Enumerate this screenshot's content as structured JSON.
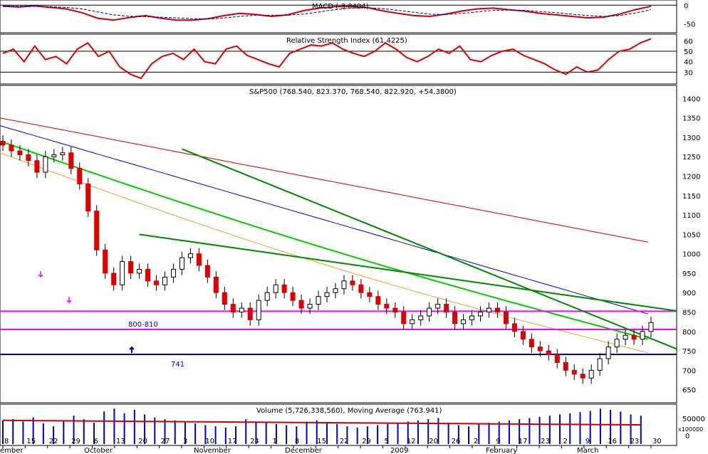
{
  "chart_data": [
    {
      "name": "macd",
      "type": "line",
      "title": "MACD (-3.0404)",
      "ylim": [
        -70,
        10
      ],
      "y_ticks": [
        "0",
        "-50"
      ],
      "series": [
        {
          "name": "MACD",
          "color": "#cc0000",
          "values": [
            -3,
            -5,
            -2,
            -6,
            -10,
            -20,
            -35,
            -40,
            -33,
            -28,
            -35,
            -40,
            -40,
            -36,
            -28,
            -22,
            -25,
            -30,
            -26,
            -15,
            -8,
            -4,
            -3,
            -6,
            -15,
            -22,
            -28,
            -30,
            -24,
            -16,
            -10,
            -8,
            -12,
            -16,
            -22,
            -26,
            -30,
            -34,
            -32,
            -24,
            -12,
            -3
          ]
        },
        {
          "name": "Signal",
          "color": "#0000aa",
          "values": [
            -2,
            -3,
            -3,
            -4,
            -6,
            -10,
            -18,
            -26,
            -30,
            -31,
            -32,
            -34,
            -36,
            -37,
            -34,
            -30,
            -27,
            -27,
            -27,
            -24,
            -18,
            -12,
            -8,
            -7,
            -9,
            -14,
            -19,
            -24,
            -25,
            -22,
            -18,
            -14,
            -13,
            -14,
            -17,
            -20,
            -24,
            -28,
            -30,
            -28,
            -21,
            -12
          ]
        }
      ]
    },
    {
      "name": "rsi",
      "type": "line",
      "title": "Relative Strength Index (61.4225)",
      "ylim": [
        20,
        65
      ],
      "y_ticks": [
        "60",
        "50",
        "40",
        "30"
      ],
      "reference_lines": [
        30,
        50
      ],
      "series": [
        {
          "name": "RSI",
          "color": "#dd0000",
          "values": [
            48,
            52,
            40,
            55,
            42,
            45,
            38,
            52,
            58,
            45,
            50,
            35,
            28,
            24,
            38,
            45,
            48,
            42,
            52,
            40,
            38,
            52,
            55,
            46,
            42,
            38,
            35,
            48,
            52,
            56,
            55,
            58,
            52,
            48,
            45,
            50,
            58,
            52,
            44,
            40,
            45,
            52,
            48,
            55,
            42,
            40,
            46,
            50,
            52,
            46,
            42,
            38,
            32,
            28,
            35,
            30,
            32,
            42,
            50,
            52,
            58,
            62
          ]
        }
      ]
    },
    {
      "name": "price",
      "type": "candlestick",
      "title": "S&P500 (768.540, 823.370, 768.540, 822.920, +54.3800)",
      "ylim": [
        620,
        1430
      ],
      "y_ticks": [
        "1400",
        "1350",
        "1300",
        "1250",
        "1200",
        "1150",
        "1100",
        "1050",
        "1000",
        "950",
        "900",
        "850",
        "800",
        "750",
        "700",
        "650"
      ],
      "close": [
        1280,
        1265,
        1255,
        1240,
        1210,
        1250,
        1255,
        1260,
        1220,
        1180,
        1110,
        1010,
        950,
        920,
        980,
        950,
        960,
        930,
        920,
        940,
        960,
        990,
        1000,
        970,
        940,
        900,
        870,
        850,
        860,
        830,
        880,
        900,
        920,
        900,
        880,
        860,
        870,
        890,
        900,
        910,
        930,
        920,
        900,
        890,
        870,
        860,
        850,
        820,
        830,
        840,
        860,
        870,
        850,
        820,
        830,
        840,
        850,
        860,
        850,
        820,
        800,
        780,
        760,
        750,
        740,
        720,
        700,
        690,
        680,
        700,
        730,
        760,
        780,
        790,
        780,
        800,
        823
      ],
      "moving_averages": [
        {
          "name": "200-day",
          "color": "#cc0000",
          "start": 1350,
          "end": 1030
        },
        {
          "name": "100-day",
          "color": "#0000cc",
          "start": 1330,
          "end": 845
        },
        {
          "name": "50-day",
          "color": "#00cc00",
          "start": 1290,
          "end": 780
        },
        {
          "name": "20-day",
          "color": "#ff9933",
          "start": 1260,
          "end": 745
        }
      ],
      "horizontal_lines": [
        {
          "value": 852,
          "color": "#ff00ff"
        },
        {
          "value": 805,
          "color": "#ff00ff"
        },
        {
          "value": 741,
          "color": "#0000cc"
        }
      ],
      "trendlines": [
        {
          "from": [
            21,
            1270
          ],
          "to": [
            79,
            755
          ],
          "color": "#008800"
        },
        {
          "from": [
            16,
            1050
          ],
          "to": [
            79,
            853
          ],
          "color": "#008800"
        }
      ],
      "annotations": [
        {
          "text": "800-810",
          "color": "#0000cc"
        },
        {
          "text": "741",
          "color": "#0000cc"
        }
      ]
    },
    {
      "name": "volume",
      "type": "bar",
      "title": "Volume (5,726,338,560), Moving Average (763.941)",
      "y_ticks": [
        "50000",
        "0"
      ],
      "unit": "x100000",
      "moving_average_color": "#cc0000",
      "values": [
        40000,
        42000,
        38000,
        45000,
        35000,
        30000,
        40000,
        48000,
        42000,
        36000,
        55000,
        60000,
        52000,
        58000,
        50000,
        45000,
        42000,
        40000,
        38000,
        35000,
        32000,
        30000,
        28000,
        30000,
        42000,
        38000,
        36000,
        34000,
        32000,
        30000,
        38000,
        40000,
        36000,
        34000,
        30000,
        28000,
        30000,
        32000,
        34000,
        36000,
        38000,
        40000,
        42000,
        44000,
        36000,
        32000,
        30000,
        34000,
        36000,
        38000,
        40000,
        42000,
        44000,
        46000,
        48000,
        50000,
        52000,
        54000,
        56000,
        60000,
        58000,
        55000,
        50000,
        48000
      ]
    }
  ],
  "x_axis": {
    "labels": [
      "8",
      "15",
      "22",
      "29",
      "6",
      "13",
      "20",
      "27",
      "3",
      "10",
      "17",
      "24",
      "1",
      "8",
      "15",
      "22",
      "29",
      "5",
      "12",
      "20",
      "26",
      "2",
      "9",
      "17",
      "23",
      "2",
      "9",
      "16",
      "23",
      "30"
    ],
    "months": [
      "ember",
      "October",
      "November",
      "December",
      "2009",
      "February",
      "March"
    ]
  }
}
